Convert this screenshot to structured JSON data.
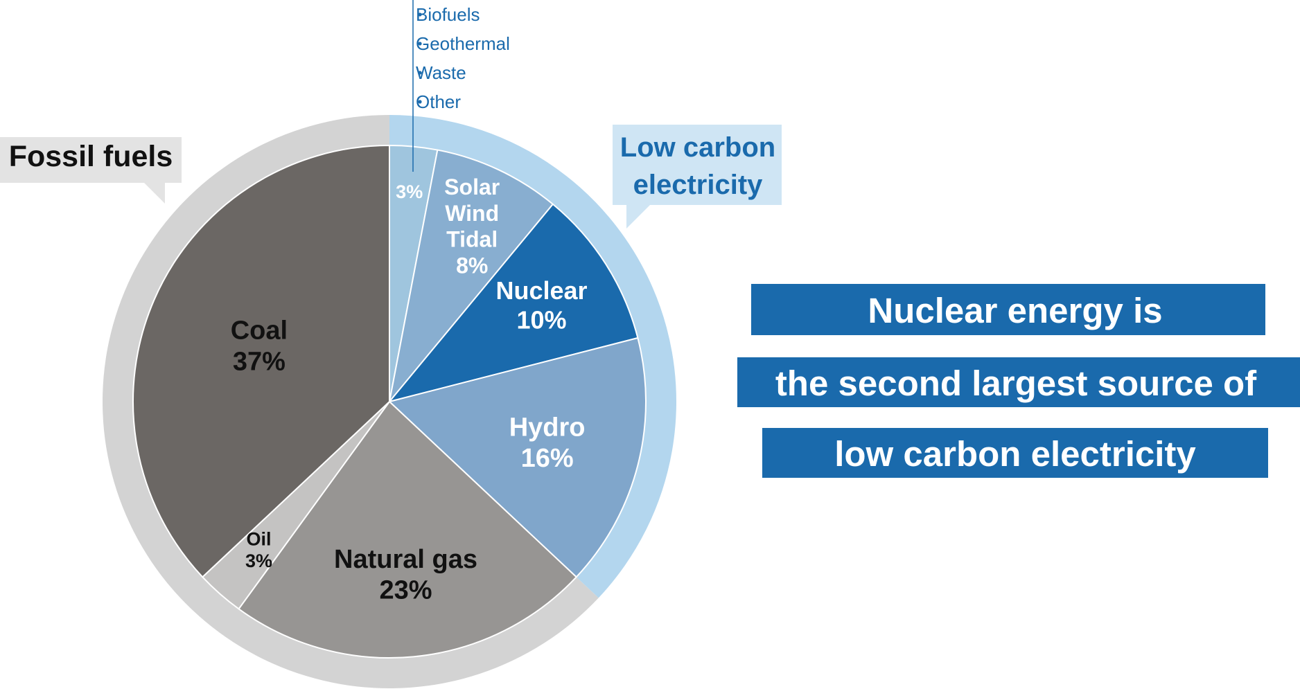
{
  "chart_data": {
    "type": "pie",
    "title": "",
    "slices": [
      {
        "id": "other",
        "label": "",
        "value": 3,
        "value_label": "3%",
        "color": "#9fc5de",
        "text_color": "#ffffff",
        "group": "low_carbon"
      },
      {
        "id": "solar",
        "label": "Solar Wind Tidal",
        "label_lines": [
          "Solar",
          "Wind",
          "Tidal"
        ],
        "value": 8,
        "value_label": "8%",
        "color": "#88aed0",
        "text_color": "#ffffff",
        "group": "low_carbon"
      },
      {
        "id": "nuclear",
        "label": "Nuclear",
        "label_lines": [
          "Nuclear"
        ],
        "value": 10,
        "value_label": "10%",
        "color": "#1a6aac",
        "text_color": "#ffffff",
        "group": "low_carbon"
      },
      {
        "id": "hydro",
        "label": "Hydro",
        "label_lines": [
          "Hydro"
        ],
        "value": 16,
        "value_label": "16%",
        "color": "#80a6cb",
        "text_color": "#ffffff",
        "group": "low_carbon"
      },
      {
        "id": "gas",
        "label": "Natural gas",
        "label_lines": [
          "Natural gas"
        ],
        "value": 23,
        "value_label": "23%",
        "color": "#979593",
        "text_color": "#111111",
        "group": "fossil"
      },
      {
        "id": "oil",
        "label": "Oil",
        "label_lines": [
          "Oil"
        ],
        "value": 3,
        "value_label": "3%",
        "color": "#c4c3c2",
        "text_color": "#111111",
        "group": "fossil"
      },
      {
        "id": "coal",
        "label": "Coal",
        "label_lines": [
          "Coal"
        ],
        "value": 37,
        "value_label": "37%",
        "color": "#6b6764",
        "text_color": "#111111",
        "group": "fossil"
      }
    ],
    "groups": [
      {
        "id": "fossil",
        "label": "Fossil fuels",
        "ring_color": "#d3d3d3",
        "callout_color": "#e3e3e3",
        "text_color": "#111111"
      },
      {
        "id": "low_carbon",
        "label": "Low carbon electricity",
        "label_lines": [
          "Low carbon",
          "electricity"
        ],
        "ring_color": "#b3d6ee",
        "callout_color": "#cfe5f4",
        "text_color": "#1a6aac"
      }
    ],
    "other_items": [
      "Biofuels",
      "Geothermal",
      "Waste",
      "Other"
    ],
    "legend": "none"
  },
  "headline": {
    "lines": [
      "Nuclear energy is",
      "the second largest source of",
      "low carbon electricity"
    ],
    "color": "#1a6aac",
    "text_color": "#ffffff"
  }
}
